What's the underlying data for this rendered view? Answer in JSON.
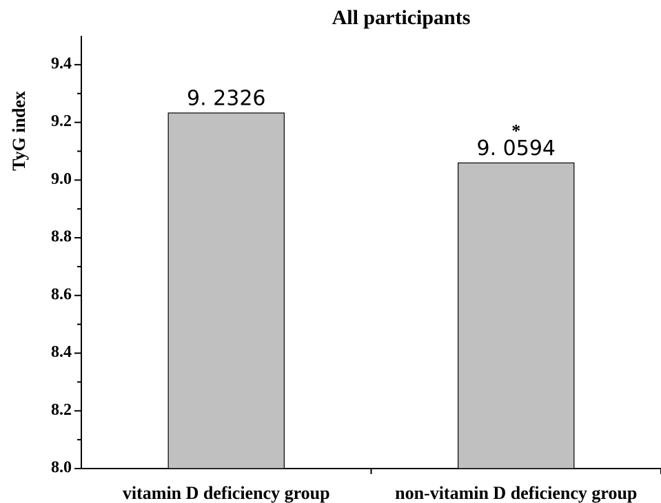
{
  "chart_data": {
    "type": "bar",
    "title": "All  participants",
    "ylabel": "TyG index",
    "categories": [
      "vitamin D deficiency group",
      "non-vitamin D deficiency group"
    ],
    "values": [
      9.2326,
      9.0594
    ],
    "value_labels": [
      "9. 2326",
      "9. 0594"
    ],
    "significance": [
      null,
      "*"
    ],
    "color": "#c0c0c0",
    "ylim": [
      8.0,
      9.5
    ],
    "yticks": [
      {
        "value": 8.0,
        "label": "8.0"
      },
      8.2,
      8.4,
      8.6,
      8.8,
      {
        "value": 9.0,
        "label": "9.0"
      },
      9.2,
      9.4
    ],
    "yminorticks": [
      8.1,
      8.3,
      8.5,
      8.7,
      8.9,
      9.1,
      9.3
    ],
    "grid": false
  }
}
